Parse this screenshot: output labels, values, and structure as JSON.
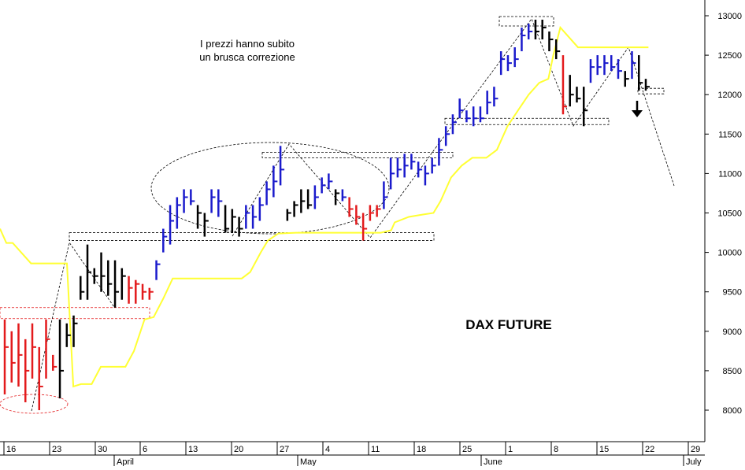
{
  "chart_data": {
    "type": "bar",
    "title": "DAX FUTURE",
    "annotation": "I prezzi hanno subito un brusca correzione",
    "annotation_lines": [
      "I prezzi hanno subito",
      "un brusca correzione"
    ],
    "ylim": [
      7550,
      13200
    ],
    "y_ticks": [
      {
        "label": "13000",
        "value": 13000
      },
      {
        "label": "12500",
        "value": 12500
      },
      {
        "label": "12000",
        "value": 12000
      },
      {
        "label": "11500",
        "value": 11500
      },
      {
        "label": "11000",
        "value": 11000
      },
      {
        "label": "10500",
        "value": 10500
      },
      {
        "label": "10000",
        "value": 10000
      },
      {
        "label": "9500",
        "value": 9500
      },
      {
        "label": "9000",
        "value": 9000
      },
      {
        "label": "8500",
        "value": 8500
      },
      {
        "label": "8000",
        "value": 8000
      }
    ],
    "x_day_ticks": [
      "16",
      "23",
      "30",
      "6",
      "13",
      "20",
      "27",
      "4",
      "11",
      "18",
      "25",
      "1",
      "8",
      "15",
      "22",
      "29"
    ],
    "x_month_labels": [
      "April",
      "May",
      "June",
      "July"
    ],
    "colors": {
      "up": "#1a1acc",
      "down": "#e31a1c",
      "neutral": "#000000",
      "moving_average": "#ffff33",
      "reference": "#000000",
      "highlight": "#e31a1c"
    },
    "series": [
      {
        "bar_color_key": [
          "neutral",
          "up",
          "down"
        ],
        "ohlc": [
          [
            9150,
            8200,
            8800,
            "down"
          ],
          [
            9000,
            8350,
            8600,
            "down"
          ],
          [
            9100,
            8300,
            8700,
            "down"
          ],
          [
            8900,
            8100,
            8500,
            "down"
          ],
          [
            9100,
            8400,
            8800,
            "down"
          ],
          [
            8800,
            8000,
            8300,
            "down"
          ],
          [
            9150,
            8400,
            8900,
            "down"
          ],
          [
            8700,
            8500,
            8550,
            "down"
          ],
          [
            9150,
            8150,
            8500,
            "neutral"
          ],
          [
            9100,
            8800,
            8950,
            "neutral"
          ],
          [
            9200,
            8800,
            9100,
            "neutral"
          ],
          [
            9700,
            9400,
            9500,
            "neutral"
          ],
          [
            10100,
            9400,
            9750,
            "neutral"
          ],
          [
            9800,
            9600,
            9700,
            "neutral"
          ],
          [
            10000,
            9500,
            9700,
            "neutral"
          ],
          [
            9900,
            9450,
            9600,
            "neutral"
          ],
          [
            9900,
            9300,
            9500,
            "neutral"
          ],
          [
            9800,
            9400,
            9700,
            "neutral"
          ],
          [
            9700,
            9350,
            9550,
            "down"
          ],
          [
            9650,
            9350,
            9600,
            "down"
          ],
          [
            9600,
            9400,
            9500,
            "down"
          ],
          [
            9550,
            9400,
            9500,
            "down"
          ],
          [
            9900,
            9650,
            9850,
            "up"
          ],
          [
            10300,
            10000,
            10200,
            "up"
          ],
          [
            10600,
            10100,
            10400,
            "up"
          ],
          [
            10700,
            10300,
            10600,
            "up"
          ],
          [
            10800,
            10500,
            10700,
            "up"
          ],
          [
            10800,
            10600,
            10650,
            "up"
          ],
          [
            10600,
            10300,
            10500,
            "neutral"
          ],
          [
            10500,
            10200,
            10400,
            "neutral"
          ],
          [
            10800,
            10500,
            10700,
            "up"
          ],
          [
            10800,
            10450,
            10650,
            "up"
          ],
          [
            10600,
            10250,
            10300,
            "neutral"
          ],
          [
            10550,
            10250,
            10450,
            "neutral"
          ],
          [
            10450,
            10200,
            10300,
            "neutral"
          ],
          [
            10600,
            10300,
            10500,
            "up"
          ],
          [
            10600,
            10300,
            10450,
            "up"
          ],
          [
            10700,
            10400,
            10600,
            "up"
          ],
          [
            10900,
            10600,
            10800,
            "up"
          ],
          [
            11100,
            10700,
            10900,
            "up"
          ],
          [
            11350,
            10850,
            11050,
            "up"
          ],
          [
            10550,
            10400,
            10500,
            "neutral"
          ],
          [
            10650,
            10450,
            10600,
            "neutral"
          ],
          [
            10800,
            10500,
            10650,
            "neutral"
          ],
          [
            10800,
            10550,
            10600,
            "neutral"
          ],
          [
            10850,
            10550,
            10700,
            "up"
          ],
          [
            10950,
            10750,
            10850,
            "up"
          ],
          [
            11000,
            10800,
            10900,
            "up"
          ],
          [
            10800,
            10600,
            10750,
            "neutral"
          ],
          [
            10800,
            10650,
            10700,
            "up"
          ],
          [
            10700,
            10450,
            10550,
            "down"
          ],
          [
            10600,
            10350,
            10450,
            "down"
          ],
          [
            10500,
            10150,
            10300,
            "down"
          ],
          [
            10600,
            10400,
            10500,
            "down"
          ],
          [
            10600,
            10450,
            10550,
            "down"
          ],
          [
            10900,
            10550,
            10700,
            "up"
          ],
          [
            11200,
            10800,
            11000,
            "up"
          ],
          [
            11200,
            10950,
            11050,
            "up"
          ],
          [
            11250,
            10950,
            11100,
            "up"
          ],
          [
            11250,
            11050,
            11150,
            "up"
          ],
          [
            11150,
            10950,
            11050,
            "up"
          ],
          [
            11100,
            10850,
            11000,
            "up"
          ],
          [
            11200,
            11000,
            11100,
            "up"
          ],
          [
            11450,
            11100,
            11300,
            "up"
          ],
          [
            11600,
            11350,
            11500,
            "up"
          ],
          [
            11750,
            11500,
            11650,
            "up"
          ],
          [
            11950,
            11700,
            11800,
            "up"
          ],
          [
            11800,
            11650,
            11700,
            "up"
          ],
          [
            11850,
            11600,
            11700,
            "up"
          ],
          [
            11850,
            11650,
            11700,
            "up"
          ],
          [
            12050,
            11750,
            11900,
            "up"
          ],
          [
            12100,
            11850,
            11950,
            "up"
          ],
          [
            12550,
            12250,
            12450,
            "up"
          ],
          [
            12500,
            12300,
            12400,
            "up"
          ],
          [
            12600,
            12350,
            12450,
            "up"
          ],
          [
            12850,
            12550,
            12750,
            "up"
          ],
          [
            12900,
            12700,
            12800,
            "up"
          ],
          [
            12950,
            12700,
            12800,
            "neutral"
          ],
          [
            12950,
            12700,
            12850,
            "neutral"
          ],
          [
            12800,
            12550,
            12700,
            "neutral"
          ],
          [
            12700,
            12450,
            12550,
            "neutral"
          ],
          [
            12500,
            11750,
            11850,
            "down"
          ],
          [
            12250,
            11850,
            12000,
            "neutral"
          ],
          [
            12100,
            11900,
            11950,
            "neutral"
          ],
          [
            12100,
            11600,
            11800,
            "neutral"
          ],
          [
            12450,
            12150,
            12350,
            "up"
          ],
          [
            12500,
            12250,
            12350,
            "up"
          ],
          [
            12500,
            12250,
            12400,
            "up"
          ],
          [
            12500,
            12300,
            12350,
            "up"
          ],
          [
            12450,
            12200,
            12300,
            "up"
          ],
          [
            12300,
            12100,
            12200,
            "neutral"
          ],
          [
            12550,
            12200,
            12400,
            "up"
          ],
          [
            12500,
            12050,
            12150,
            "neutral"
          ],
          [
            12200,
            12050,
            12100,
            "neutral"
          ]
        ]
      }
    ],
    "moving_average": [
      [
        10300
      ],
      [
        10100
      ],
      [
        10100
      ],
      [
        9850
      ],
      [
        9850
      ],
      [
        9850
      ],
      [
        9850
      ],
      [
        8300
      ],
      [
        8330
      ],
      [
        8330
      ],
      [
        8550
      ],
      [
        8550
      ],
      [
        8550
      ],
      [
        9170
      ],
      [
        9170
      ],
      [
        9170
      ],
      [
        9670
      ],
      [
        9670
      ],
      [
        9670
      ],
      [
        9670
      ],
      [
        9670
      ],
      [
        9670
      ],
      [
        9670
      ],
      [
        9850
      ],
      [
        10100
      ],
      [
        10100
      ],
      [
        10240
      ],
      [
        10240
      ],
      [
        10240
      ],
      [
        10240
      ],
      [
        10240
      ],
      [
        10240
      ],
      [
        10240
      ],
      [
        10240
      ],
      [
        10400
      ],
      [
        10400
      ],
      [
        10550
      ],
      [
        10550
      ],
      [
        10800
      ],
      [
        11000
      ],
      [
        11200
      ],
      [
        11200
      ],
      [
        11350
      ],
      [
        11500
      ],
      [
        11650
      ],
      [
        11650
      ],
      [
        11650
      ],
      [
        11900
      ],
      [
        12150
      ],
      [
        12150
      ],
      [
        12250
      ],
      [
        12500
      ],
      [
        12500
      ],
      [
        12800
      ],
      [
        12800
      ],
      [
        12600
      ],
      [
        12600
      ],
      [
        12600
      ],
      [
        12600
      ],
      [
        12600
      ],
      [
        12600
      ],
      [
        12600
      ]
    ],
    "ma_x_anchors": [
      [
        0.0,
        10300
      ],
      [
        0.009,
        10120
      ],
      [
        0.018,
        10120
      ],
      [
        0.044,
        9860
      ],
      [
        0.07,
        9860
      ],
      [
        0.095,
        9860
      ],
      [
        0.104,
        8300
      ],
      [
        0.115,
        8330
      ],
      [
        0.13,
        8330
      ],
      [
        0.143,
        8550
      ],
      [
        0.158,
        8550
      ],
      [
        0.178,
        8550
      ],
      [
        0.19,
        8750
      ],
      [
        0.205,
        9150
      ],
      [
        0.218,
        9180
      ],
      [
        0.232,
        9420
      ],
      [
        0.245,
        9670
      ],
      [
        0.265,
        9670
      ],
      [
        0.3,
        9670
      ],
      [
        0.343,
        9670
      ],
      [
        0.355,
        9750
      ],
      [
        0.37,
        10000
      ],
      [
        0.38,
        10150
      ],
      [
        0.395,
        10240
      ],
      [
        0.42,
        10250
      ],
      [
        0.5,
        10250
      ],
      [
        0.54,
        10250
      ],
      [
        0.555,
        10280
      ],
      [
        0.56,
        10380
      ],
      [
        0.58,
        10450
      ],
      [
        0.6,
        10480
      ],
      [
        0.615,
        10500
      ],
      [
        0.625,
        10650
      ],
      [
        0.64,
        10950
      ],
      [
        0.655,
        11100
      ],
      [
        0.67,
        11200
      ],
      [
        0.69,
        11200
      ],
      [
        0.705,
        11300
      ],
      [
        0.72,
        11600
      ],
      [
        0.735,
        11800
      ],
      [
        0.75,
        12000
      ],
      [
        0.765,
        12150
      ],
      [
        0.778,
        12200
      ],
      [
        0.785,
        12500
      ],
      [
        0.795,
        12850
      ],
      [
        0.82,
        12600
      ],
      [
        0.9,
        12600
      ],
      [
        0.92,
        12600
      ]
    ]
  }
}
